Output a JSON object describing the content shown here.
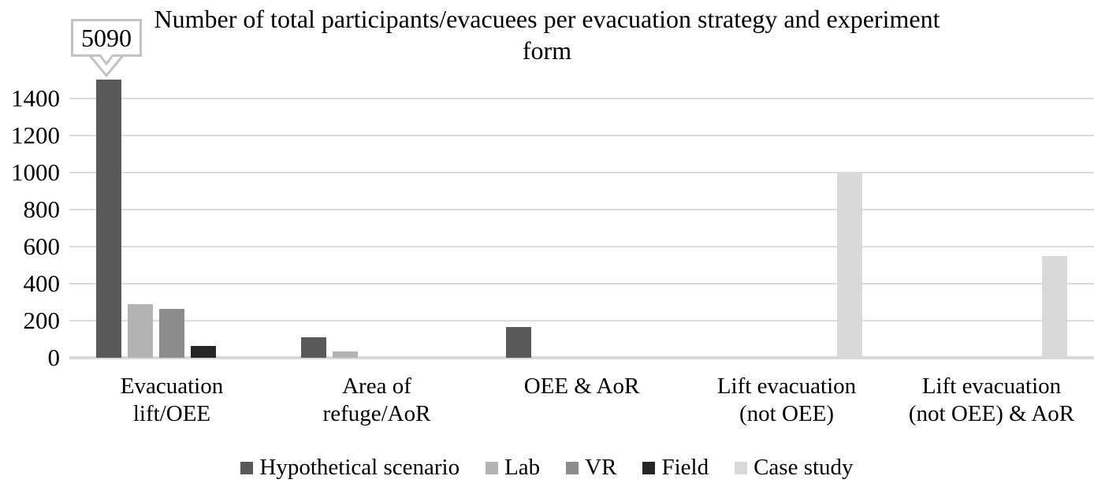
{
  "chart_data": {
    "type": "bar",
    "title": "Number of total participants/evacuees per evacuation strategy and experiment form",
    "categories": [
      "Evacuation lift/OEE",
      "Area of refuge/AoR",
      "OEE & AoR",
      "Lift evacuation (not OEE)",
      "Lift evacuation (not OEE) & AoR"
    ],
    "category_display": [
      "Evacuation\nlift/OEE",
      "Area of\nrefuge/AoR",
      "OEE & AoR",
      "Lift evacuation\n(not OEE)",
      "Lift evacuation\n(not OEE) & AoR"
    ],
    "series": [
      {
        "name": "Hypothetical scenario",
        "color": "#595959",
        "values": [
          5090,
          110,
          165,
          0,
          0
        ]
      },
      {
        "name": "Lab",
        "color": "#b3b3b3",
        "values": [
          290,
          35,
          0,
          0,
          0
        ]
      },
      {
        "name": "VR",
        "color": "#8c8c8c",
        "values": [
          265,
          0,
          0,
          0,
          0
        ]
      },
      {
        "name": "Field",
        "color": "#262626",
        "values": [
          65,
          0,
          0,
          0,
          0
        ]
      },
      {
        "name": "Case study",
        "color": "#d9d9d9",
        "values": [
          0,
          0,
          0,
          1000,
          550
        ]
      }
    ],
    "y_axis": {
      "min": 0,
      "max": 1500,
      "tick_interval": 200,
      "tick_labels": [
        "0",
        "200",
        "400",
        "600",
        "800",
        "1000",
        "1200",
        "1400"
      ]
    },
    "annotations": [
      {
        "text": "5090",
        "series": "Hypothetical scenario",
        "category": "Evacuation lift/OEE",
        "note": "bar clipped at axis top"
      }
    ],
    "legend_position": "bottom",
    "grid": true,
    "colors": {
      "gridline": "#dcdcdc",
      "axis_line": "#d9d9d9",
      "callout_border": "#c3c3c3",
      "background": "#ffffff"
    }
  }
}
